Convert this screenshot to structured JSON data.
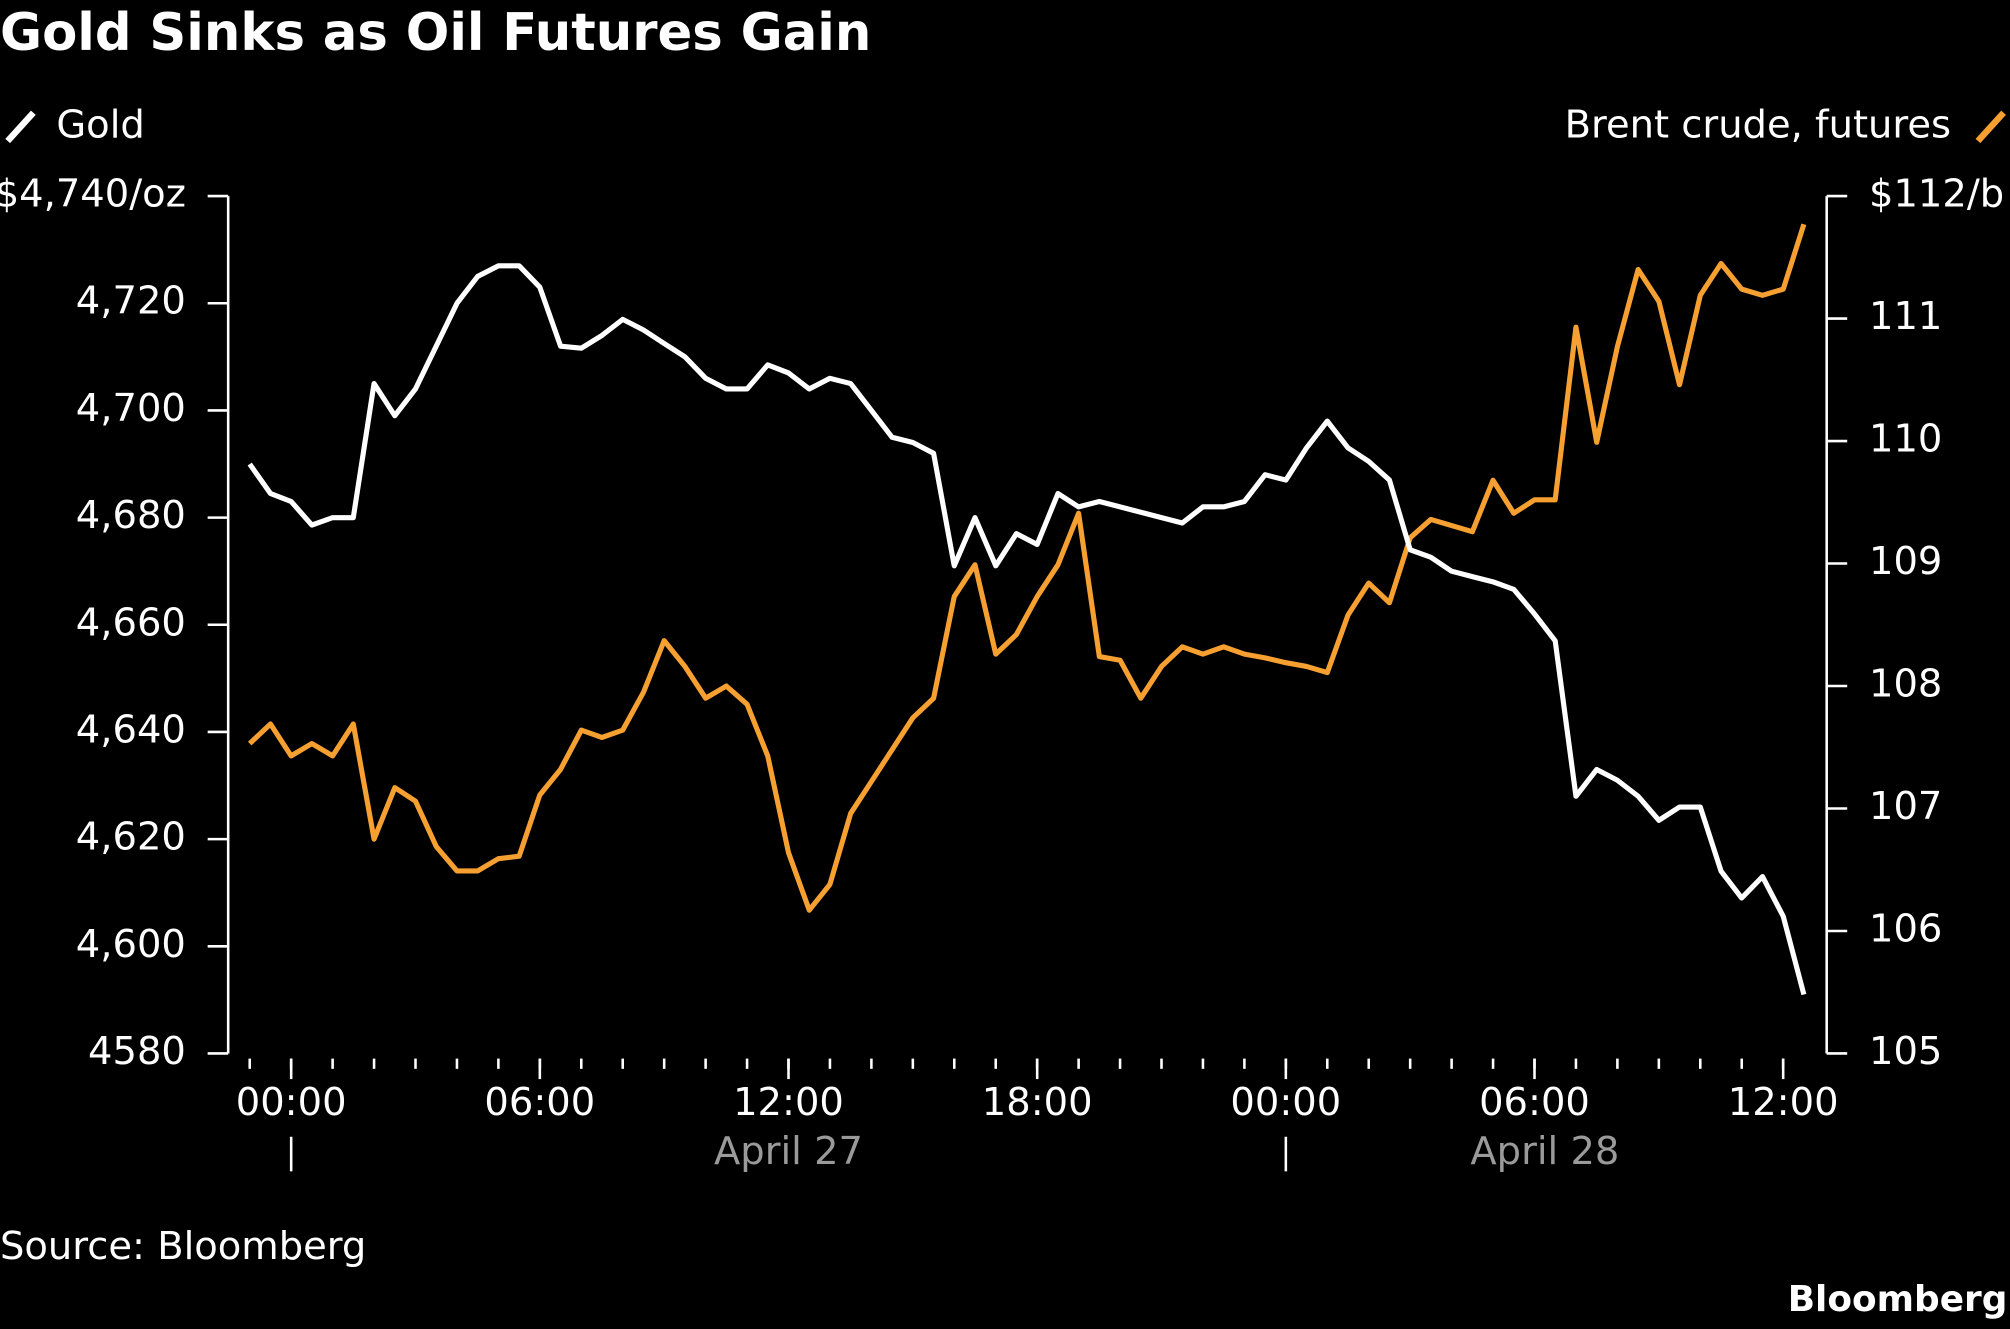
{
  "chart_data": {
    "type": "line",
    "title": "Gold Sinks as Oil Futures Gain",
    "source": "Source: Bloomberg",
    "brand": "Bloomberg",
    "x": [
      -1,
      -0.5,
      0,
      0.5,
      1,
      1.5,
      2,
      2.5,
      3,
      3.5,
      4,
      4.5,
      5,
      5.5,
      6,
      6.5,
      7,
      7.5,
      8,
      8.5,
      9,
      9.5,
      10,
      10.5,
      11,
      11.5,
      12,
      12.5,
      13,
      13.5,
      14,
      14.5,
      15,
      15.5,
      16,
      16.5,
      17,
      17.5,
      18,
      18.5,
      19,
      19.5,
      20,
      20.5,
      21,
      21.5,
      22,
      22.5,
      23,
      23.5,
      24,
      24.5,
      25,
      25.5,
      26,
      26.5,
      27,
      27.5,
      28,
      28.5,
      29,
      29.5,
      30,
      30.5,
      31,
      31.5,
      32,
      32.5,
      33,
      33.5,
      34,
      34.5,
      35,
      35.5,
      36,
      36.5
    ],
    "series": [
      {
        "name": "Gold",
        "color": "#ffffff",
        "axis": "y",
        "values": [
          4690,
          4684.5,
          4683,
          4678.6,
          4680,
          4680,
          4705,
          4699,
          4704,
          4712,
          4720,
          4725,
          4727,
          4727,
          4723,
          4712,
          4711.6,
          4714,
          4717,
          4715,
          4712.5,
          4710,
          4706,
          4704,
          4704,
          4708.5,
          4707,
          4704,
          4706,
          4705,
          4700,
          4695,
          4694,
          4692,
          4671,
          4680,
          4671,
          4677,
          4675,
          4684.5,
          4682,
          4683,
          4682,
          4681,
          4680,
          4679,
          4682,
          4682,
          4683,
          4688,
          4687,
          4693,
          4698,
          4693,
          4690.5,
          4687,
          4674,
          4672.6,
          4670,
          4669,
          4668,
          4666.6,
          4662,
          4657,
          4628,
          4633,
          4631,
          4628,
          4623.5,
          4626,
          4626,
          4614,
          4609,
          4613,
          4605.6,
          4591
        ]
      },
      {
        "name": "Brent crude, futures",
        "color": "#f7a032",
        "axis": "y2",
        "values": [
          107.53,
          107.69,
          107.43,
          107.53,
          107.43,
          107.69,
          106.75,
          107.17,
          107.06,
          106.69,
          106.49,
          106.49,
          106.59,
          106.61,
          107.11,
          107.32,
          107.64,
          107.58,
          107.64,
          107.95,
          108.37,
          108.16,
          107.9,
          108,
          107.85,
          107.43,
          106.64,
          106.17,
          106.38,
          106.96,
          107.22,
          107.48,
          107.74,
          107.9,
          108.73,
          108.99,
          108.26,
          108.42,
          108.73,
          108.99,
          109.41,
          108.24,
          108.21,
          107.9,
          108.16,
          108.32,
          108.26,
          108.32,
          108.26,
          108.23,
          108.19,
          108.16,
          108.11,
          108.58,
          108.84,
          108.68,
          109.21,
          109.36,
          109.31,
          109.26,
          109.68,
          109.41,
          109.52,
          109.52,
          110.93,
          109.99,
          110.77,
          111.4,
          111.14,
          110.46,
          111.19,
          111.45,
          111.24,
          111.19,
          111.24,
          111.77
        ]
      }
    ],
    "xlim": [
      -1.52,
      37.05
    ],
    "xticks": [
      {
        "value": 0,
        "label": "00:00"
      },
      {
        "value": 6,
        "label": "06:00"
      },
      {
        "value": 12,
        "label": "12:00"
      },
      {
        "value": 18,
        "label": "18:00"
      },
      {
        "value": 24,
        "label": "00:00"
      },
      {
        "value": 30,
        "label": "06:00"
      },
      {
        "value": 36,
        "label": "12:00"
      }
    ],
    "xminor_ticks": [
      -1,
      0,
      1,
      2,
      3,
      4,
      5,
      6,
      7,
      8,
      9,
      10,
      11,
      12,
      13,
      14,
      15,
      16,
      17,
      18,
      19,
      20,
      21,
      22,
      23,
      24,
      25,
      26,
      27,
      28,
      29,
      30,
      31,
      32,
      33,
      34,
      35,
      36
    ],
    "dates": [
      {
        "value": 0,
        "label": "April 27"
      },
      {
        "value": 24,
        "label": "April 28"
      }
    ],
    "ylim": [
      4580,
      4740
    ],
    "yticks": [
      4580,
      {
        "value": 4600,
        "label": "4,600"
      },
      {
        "value": 4620,
        "label": "4,620"
      },
      {
        "value": 4640,
        "label": "4,640"
      },
      {
        "value": 4660,
        "label": "4,660"
      },
      {
        "value": 4680,
        "label": "4,680"
      },
      {
        "value": 4700,
        "label": "4,700"
      },
      {
        "value": 4720,
        "label": "4,720"
      },
      {
        "value": 4740,
        "label": "$4,740/oz"
      }
    ],
    "y2lim": [
      105,
      112
    ],
    "y2ticks": [
      105,
      106,
      107,
      108,
      109,
      110,
      111,
      {
        "value": 112,
        "label": "$112/b"
      }
    ]
  }
}
